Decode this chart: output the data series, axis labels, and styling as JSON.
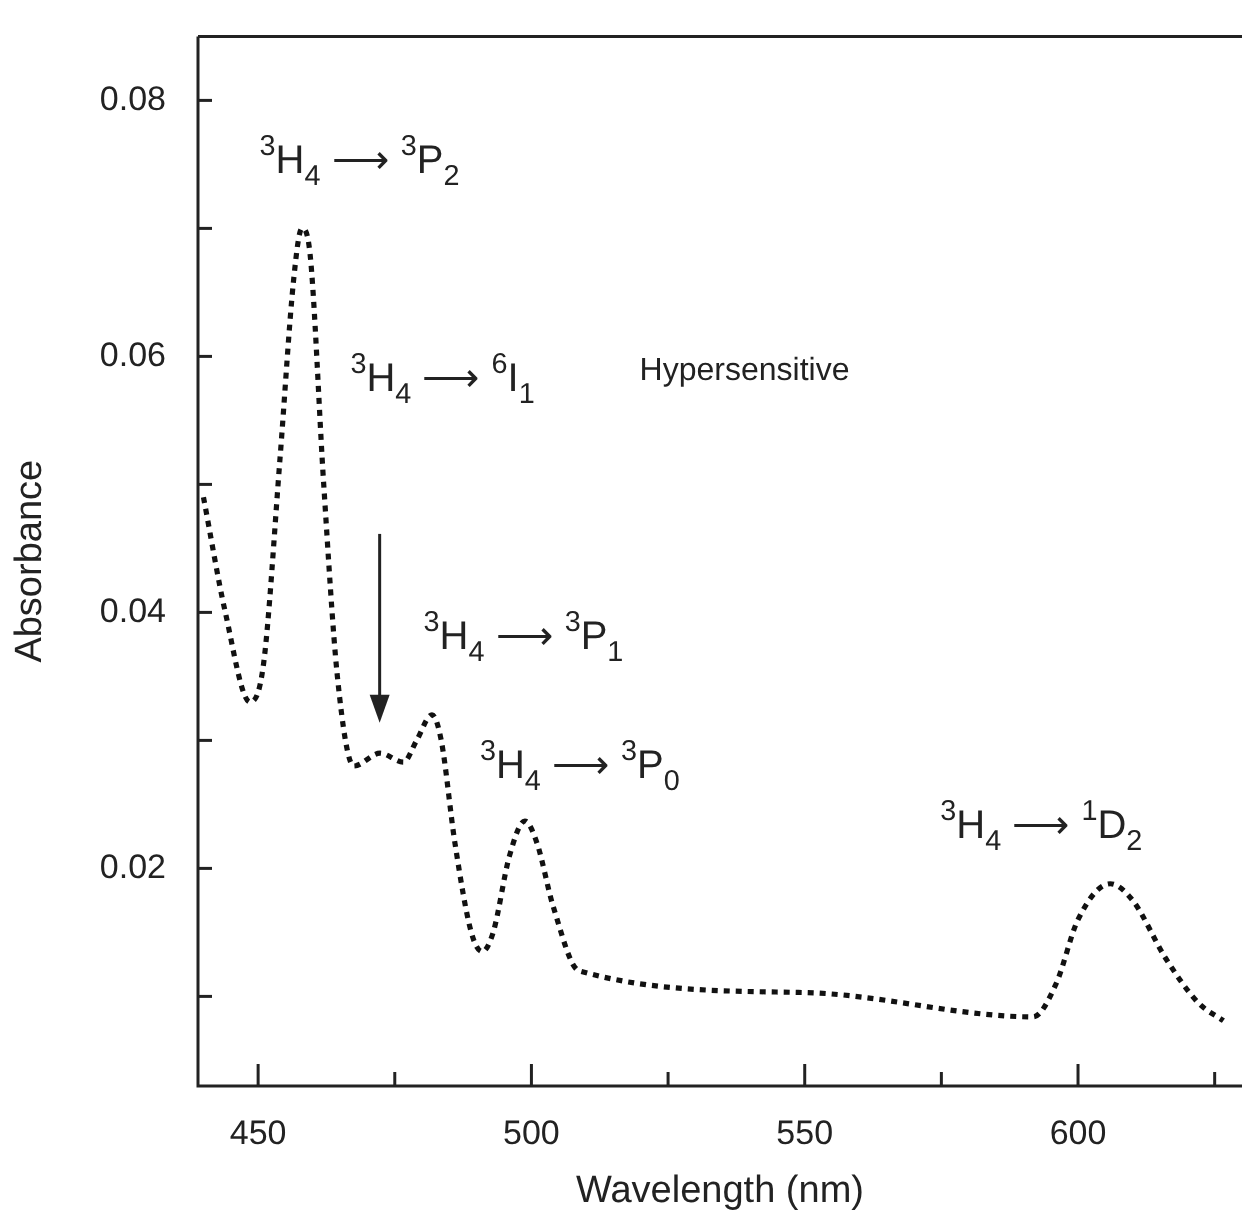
{
  "chart_data": {
    "type": "line",
    "xlabel": "Wavelength (nm)",
    "ylabel": "Absorbance",
    "xlim": [
      439,
      630
    ],
    "ylim": [
      0.003,
      0.085
    ],
    "xticks": [
      450,
      {
        "value": 475,
        "label": null
      },
      500,
      {
        "value": 525,
        "label": null
      },
      550,
      {
        "value": 575,
        "label": null
      },
      600,
      {
        "value": 625,
        "label": null
      }
    ],
    "yticks": [
      {
        "value": 0.01,
        "label": null
      },
      0.02,
      {
        "value": 0.03,
        "label": null
      },
      0.04,
      {
        "value": 0.05,
        "label": null
      },
      0.06,
      {
        "value": 0.07,
        "label": null
      },
      0.08
    ],
    "grid": false,
    "legend": false,
    "marker": "none",
    "line_style": "dotted",
    "series": [
      {
        "color": "#111111",
        "x": [
          440,
          444,
          448.5,
          451,
          454,
          456.5,
          458,
          459.5,
          462,
          464.5,
          467.5,
          472.3,
          476.6,
          479,
          481.8,
          483.5,
          486,
          489,
          491,
          493,
          496,
          498.8,
          501,
          504,
          508.7,
          550,
          591.8,
          596,
          600,
          605.9,
          610,
          616,
          622,
          626.6
        ],
        "values": [
          0.049,
          0.04,
          0.033,
          0.036,
          0.052,
          0.066,
          0.07,
          0.068,
          0.05,
          0.035,
          0.028,
          0.029,
          0.0283,
          0.03,
          0.032,
          0.03,
          0.022,
          0.015,
          0.0135,
          0.015,
          0.021,
          0.0237,
          0.022,
          0.017,
          0.012,
          0.0103,
          0.0084,
          0.011,
          0.016,
          0.0188,
          0.0175,
          0.013,
          0.0095,
          0.0081
        ]
      }
    ],
    "annotations": [
      "$^{3}$H$_{4}$ ⟶ $^{3}$P$_{2}$",
      "$^{3}$H$_{4}$ ⟶ $^{6}$I$_{1}$",
      "Hypersensitive",
      "$^{3}$H$_{4}$ ⟶ $^{3}$P$_{1}$",
      "$^{3}$H$_{4}$ ⟶ $^{3}$P$_{0}$",
      "$^{3}$H$_{4}$ ⟶ $^{1}$D$_{2}$"
    ]
  }
}
